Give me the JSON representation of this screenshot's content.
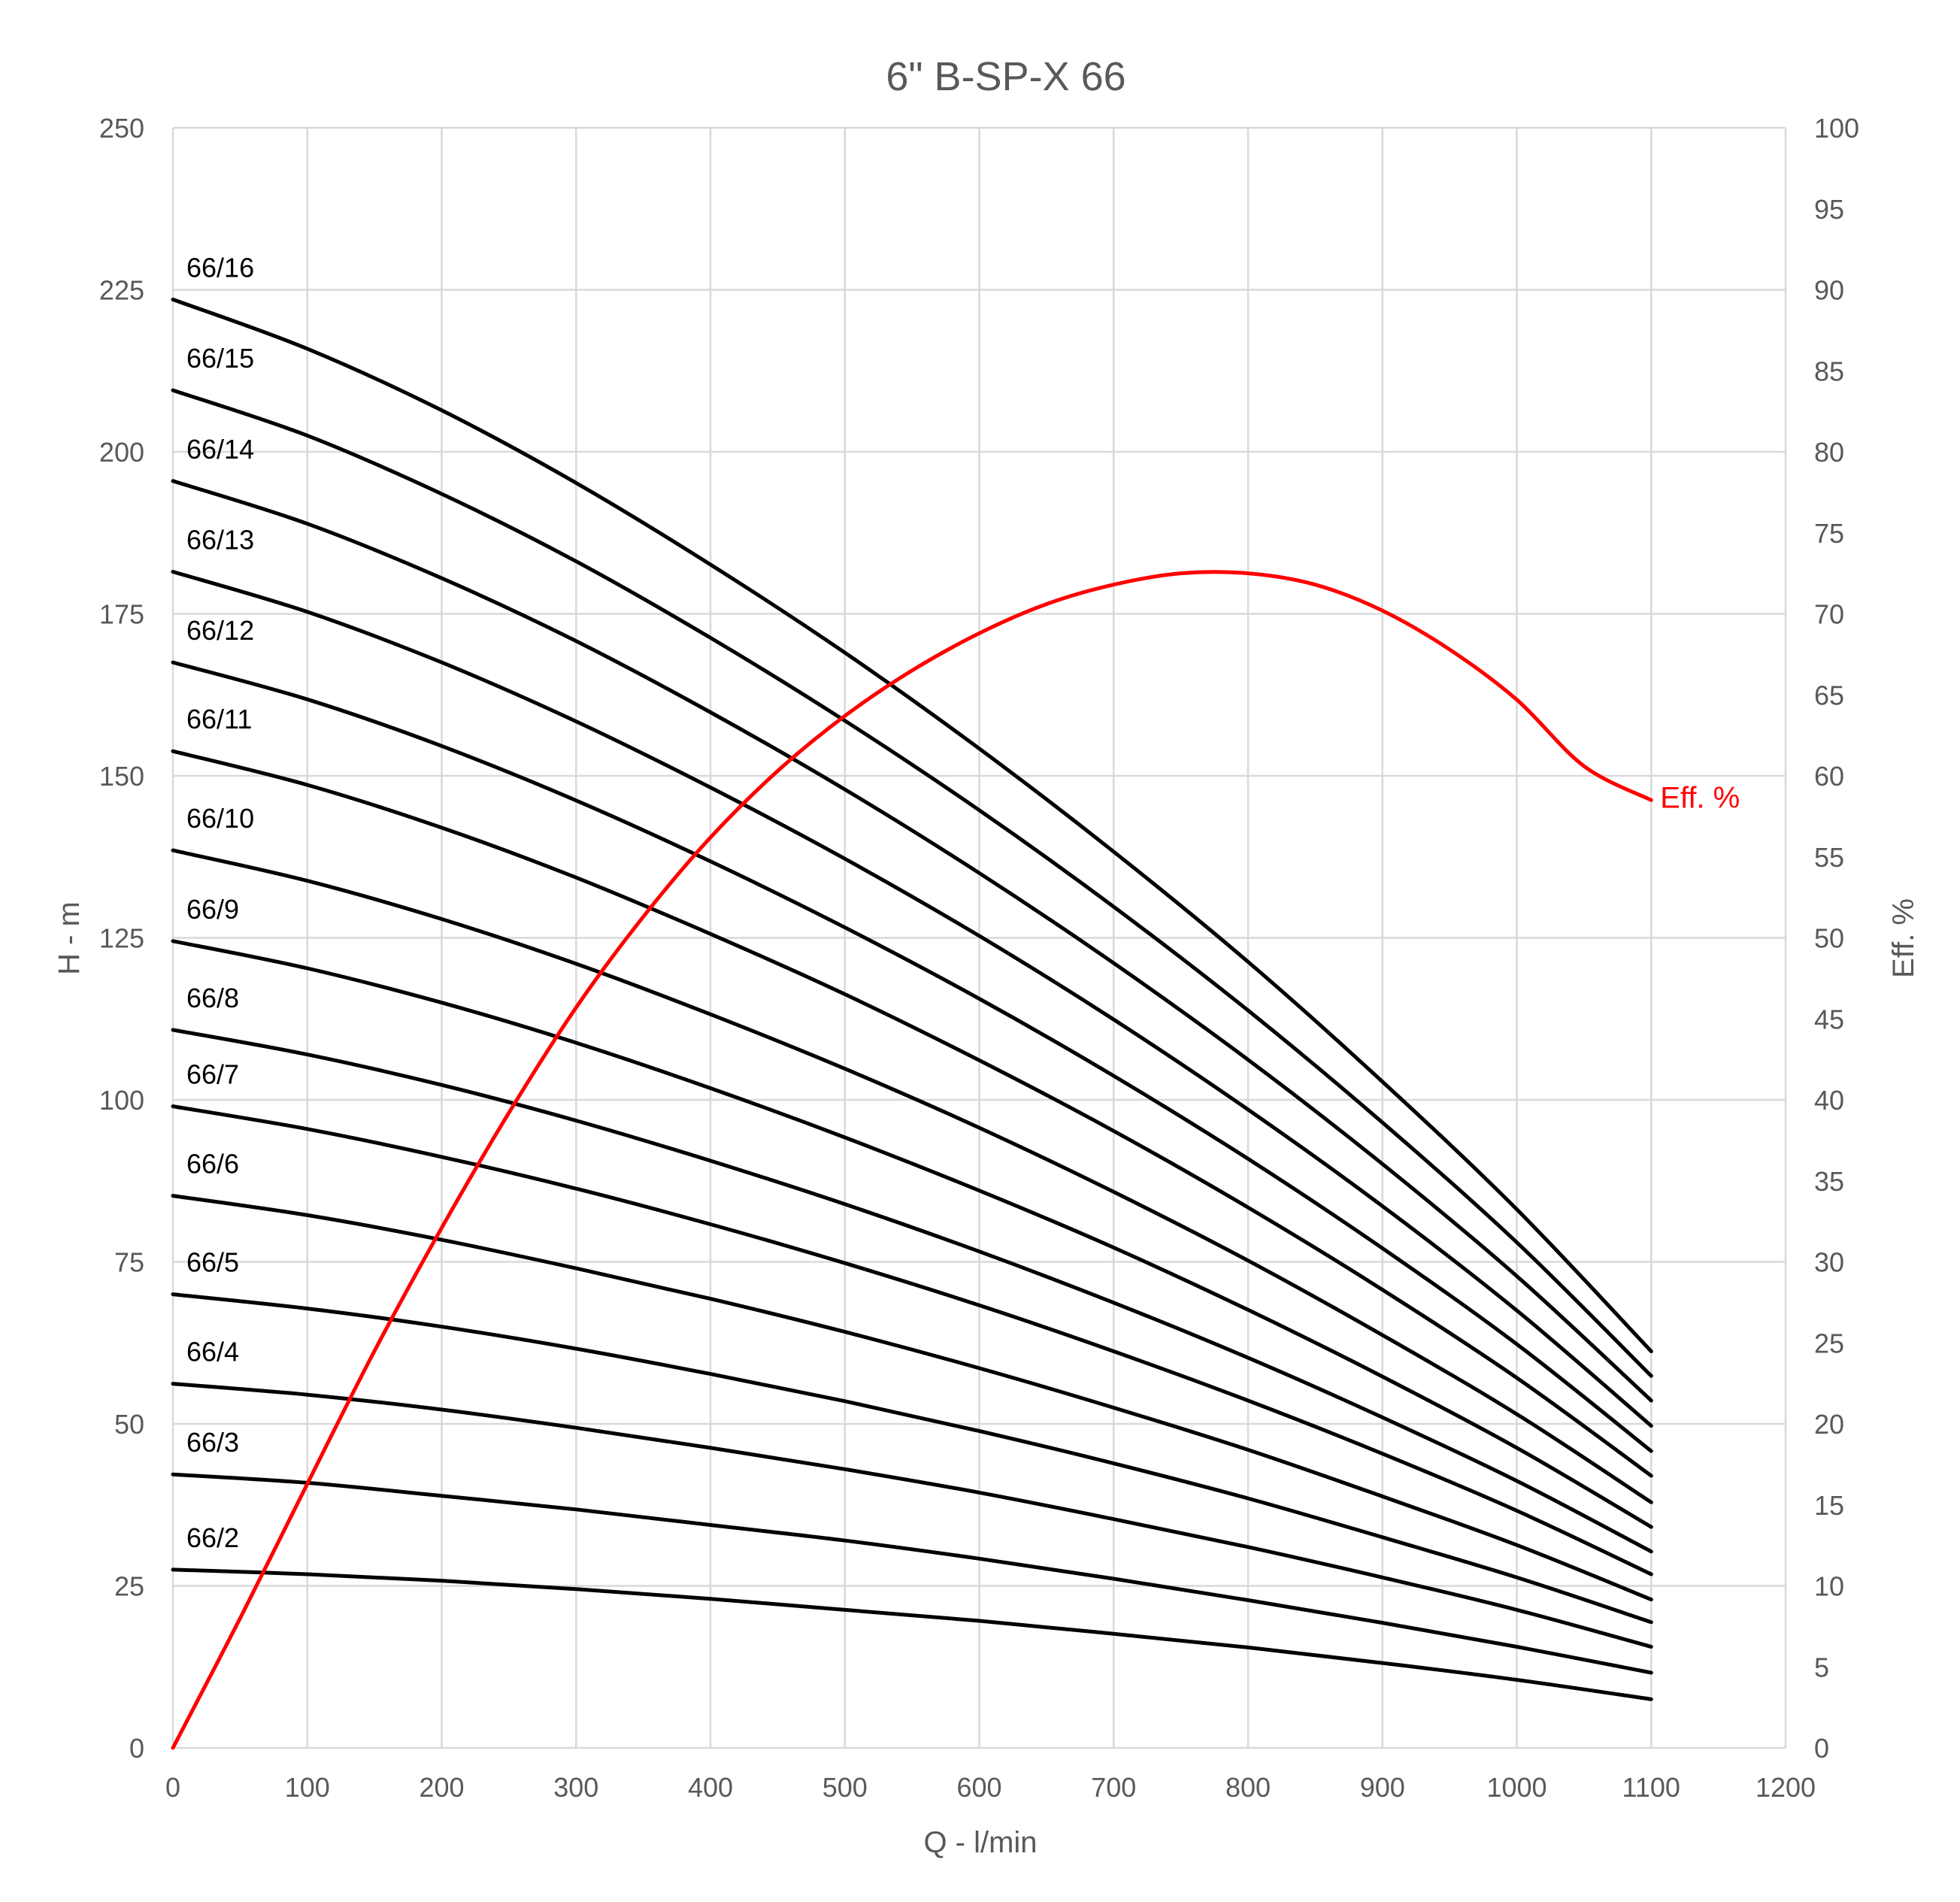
{
  "chart_data": {
    "type": "line",
    "title": "6\" B-SP-X 66",
    "xlabel": "Q - l/min",
    "ylabel": "H - m",
    "y2label": "Eff. %",
    "xlim": [
      0,
      1200
    ],
    "ylim": [
      0,
      250
    ],
    "y2lim": [
      0,
      100
    ],
    "x_ticks": [
      0,
      100,
      200,
      300,
      400,
      500,
      600,
      700,
      800,
      900,
      1000,
      1100,
      1200
    ],
    "y_ticks": [
      0,
      25,
      50,
      75,
      100,
      125,
      150,
      175,
      200,
      225,
      250
    ],
    "y2_ticks": [
      0,
      5,
      10,
      15,
      20,
      25,
      30,
      35,
      40,
      45,
      50,
      55,
      60,
      65,
      70,
      75,
      80,
      85,
      90,
      95,
      100
    ],
    "grid": true,
    "x": [
      0,
      100,
      200,
      300,
      400,
      500,
      600,
      700,
      800,
      900,
      1000,
      1100
    ],
    "series": [
      {
        "name": "66/2",
        "values": [
          27.5,
          26.8,
          25.8,
          24.5,
          23.0,
          21.3,
          19.6,
          17.6,
          15.5,
          13.1,
          10.5,
          7.5
        ]
      },
      {
        "name": "66/3",
        "values": [
          42.2,
          40.9,
          38.9,
          36.8,
          34.4,
          32.0,
          29.2,
          26.1,
          22.8,
          19.3,
          15.6,
          11.6
        ]
      },
      {
        "name": "66/4",
        "values": [
          56.2,
          54.5,
          52.2,
          49.4,
          46.3,
          43.0,
          39.4,
          35.3,
          31.0,
          26.3,
          21.3,
          15.6
        ]
      },
      {
        "name": "66/5",
        "values": [
          70.0,
          67.8,
          65.0,
          61.6,
          57.7,
          53.5,
          48.9,
          43.9,
          38.5,
          32.5,
          26.3,
          19.4
        ]
      },
      {
        "name": "66/6",
        "values": [
          85.2,
          82.2,
          78.4,
          74.0,
          69.3,
          64.2,
          58.6,
          52.5,
          46.0,
          38.8,
          31.3,
          22.9
        ]
      },
      {
        "name": "66/7",
        "values": [
          99.0,
          95.5,
          91.2,
          86.3,
          80.8,
          74.8,
          68.3,
          61.2,
          53.6,
          45.4,
          36.6,
          26.8
        ]
      },
      {
        "name": "66/8",
        "values": [
          110.8,
          107.0,
          102.3,
          96.8,
          90.6,
          83.9,
          76.6,
          68.7,
          60.2,
          51.0,
          41.2,
          30.3
        ]
      },
      {
        "name": "66/9",
        "values": [
          124.5,
          120.3,
          115.0,
          108.8,
          101.8,
          94.2,
          86.0,
          77.2,
          67.6,
          57.3,
          46.3,
          34.1
        ]
      },
      {
        "name": "66/10",
        "values": [
          138.5,
          133.8,
          127.9,
          121.0,
          113.2,
          104.8,
          95.7,
          85.8,
          75.2,
          63.7,
          51.5,
          37.9
        ]
      },
      {
        "name": "66/11",
        "values": [
          153.8,
          148.6,
          142.0,
          134.3,
          125.6,
          116.3,
          106.1,
          95.2,
          83.4,
          70.7,
          57.1,
          42.0
        ]
      },
      {
        "name": "66/12",
        "values": [
          167.5,
          161.8,
          154.6,
          146.2,
          136.8,
          126.6,
          115.6,
          103.7,
          90.9,
          77.1,
          62.3,
          45.8
        ]
      },
      {
        "name": "66/13",
        "values": [
          181.5,
          175.3,
          167.5,
          158.4,
          148.2,
          137.2,
          125.3,
          112.4,
          98.5,
          83.6,
          67.5,
          49.7
        ]
      },
      {
        "name": "66/14",
        "values": [
          195.5,
          188.9,
          180.5,
          170.8,
          159.8,
          147.9,
          135.0,
          121.1,
          106.2,
          90.1,
          72.8,
          53.6
        ]
      },
      {
        "name": "66/15",
        "values": [
          209.5,
          202.5,
          193.5,
          183.1,
          171.3,
          158.5,
          144.7,
          129.8,
          113.8,
          96.5,
          78.0,
          57.4
        ]
      },
      {
        "name": "66/16",
        "values": [
          223.5,
          215.9,
          206.4,
          195.2,
          182.6,
          169.0,
          154.2,
          138.3,
          121.3,
          102.8,
          83.1,
          61.2
        ]
      }
    ],
    "efficiency": {
      "name": "Eff. %",
      "axis": "right",
      "x": [
        0,
        50,
        100,
        150,
        200,
        250,
        300,
        350,
        400,
        450,
        500,
        550,
        600,
        650,
        700,
        750,
        800,
        850,
        900,
        950,
        1000,
        1050,
        1100
      ],
      "values": [
        0,
        8,
        16.3,
        24.5,
        32.1,
        39.2,
        45.7,
        51.3,
        56.2,
        60.3,
        63.7,
        66.5,
        68.8,
        70.6,
        71.8,
        72.5,
        72.5,
        71.8,
        70.2,
        67.8,
        64.7,
        60.6,
        58.5
      ]
    },
    "colors": {
      "series": "#000000",
      "efficiency": "#ff0000",
      "grid": "#d9d9d9",
      "text": "#595959"
    }
  }
}
